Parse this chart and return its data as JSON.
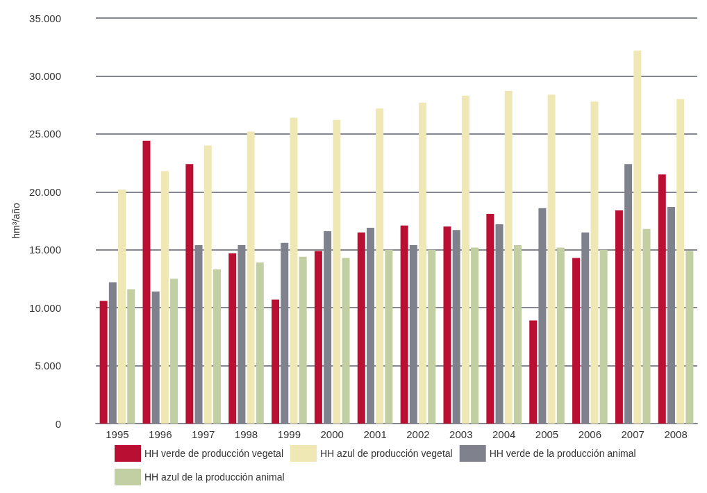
{
  "chart_data": {
    "type": "bar",
    "ylabel": "hm³/año",
    "categories": [
      "1995",
      "1996",
      "1997",
      "1998",
      "1999",
      "2000",
      "2001",
      "2002",
      "2003",
      "2004",
      "2005",
      "2006",
      "2007",
      "2008"
    ],
    "series": [
      {
        "name": "HH verde de producción vegetal",
        "color": "#b90f32",
        "values": [
          10600,
          24400,
          22400,
          14700,
          10700,
          14900,
          16500,
          17100,
          17000,
          18100,
          8900,
          14300,
          18400,
          21500
        ]
      },
      {
        "name": "HH verde de la producción animal",
        "color": "#7f828c",
        "values": [
          12200,
          11400,
          15400,
          15400,
          15600,
          16600,
          16900,
          15400,
          16700,
          17200,
          18600,
          16500,
          22400,
          18700
        ]
      },
      {
        "name": "HH azul de producción vegetal",
        "color": "#efe8b5",
        "values": [
          20200,
          21800,
          24000,
          25200,
          26400,
          26200,
          27200,
          27700,
          28300,
          28700,
          28400,
          27800,
          32200,
          28000
        ]
      },
      {
        "name": "HH azul de la producción animal",
        "color": "#c1cfa2",
        "values": [
          11600,
          12500,
          13300,
          13900,
          14400,
          14300,
          15000,
          15000,
          15200,
          15400,
          15200,
          15000,
          16800,
          14900
        ]
      }
    ],
    "ylim": [
      0,
      35000
    ],
    "yticks": [
      {
        "value": 0,
        "label": "0"
      },
      {
        "value": 5000,
        "label": "5.000"
      },
      {
        "value": 10000,
        "label": "10.000"
      },
      {
        "value": 15000,
        "label": "15.000"
      },
      {
        "value": 20000,
        "label": "20.000"
      },
      {
        "value": 25000,
        "label": "25.000"
      },
      {
        "value": 30000,
        "label": "30.000"
      },
      {
        "value": 35000,
        "label": "35.000"
      }
    ],
    "grid": "y",
    "legend": "bottom"
  }
}
